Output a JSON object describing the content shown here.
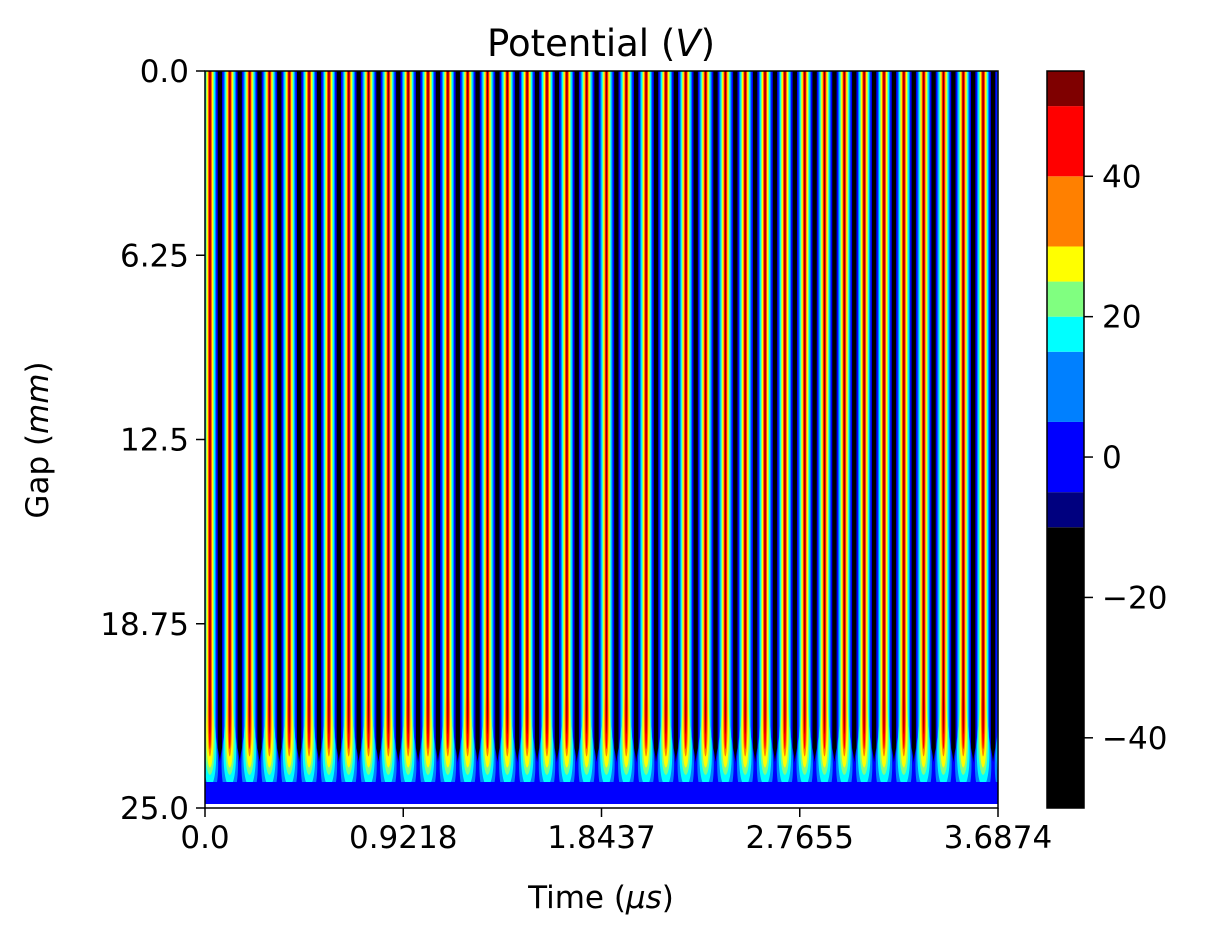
{
  "chart_data": {
    "type": "heatmap",
    "plot_kind": "filled-contour",
    "title": {
      "prefix": "Potential (",
      "symbol": "V",
      "suffix": ")"
    },
    "xlabel": {
      "prefix": "Time (",
      "symbol": "μs",
      "suffix": ")"
    },
    "ylabel": {
      "prefix": "Gap (",
      "symbol": "mm",
      "suffix": ")"
    },
    "x_ticks": [
      "0.0",
      "0.9218",
      "1.8437",
      "2.7655",
      "3.6874"
    ],
    "x_tick_values": [
      0.0,
      0.9218,
      1.8437,
      2.7655,
      3.6874
    ],
    "xlim": [
      0.0,
      3.6874
    ],
    "y_ticks": [
      "0.0",
      "6.25",
      "12.5",
      "18.75",
      "25.0"
    ],
    "y_tick_values": [
      0.0,
      6.25,
      12.5,
      18.75,
      25.0
    ],
    "ylim": [
      25.0,
      0.0
    ],
    "y_inverted": true,
    "oscillation_cycles": 40,
    "colormap": "jet",
    "colorbar": {
      "ticks": [
        "40",
        "20",
        "0",
        "−20",
        "−40"
      ],
      "tick_values": [
        40,
        20,
        0,
        -20,
        -40
      ],
      "range": [
        -50,
        55
      ],
      "levels": [
        {
          "from": -50,
          "to": -10,
          "color": "#000000"
        },
        {
          "from": -10,
          "to": -5,
          "color": "#00007f"
        },
        {
          "from": -5,
          "to": 5,
          "color": "#0000ff"
        },
        {
          "from": 5,
          "to": 15,
          "color": "#0080ff"
        },
        {
          "from": 15,
          "to": 20,
          "color": "#00ffff"
        },
        {
          "from": 20,
          "to": 25,
          "color": "#80ff80"
        },
        {
          "from": 25,
          "to": 30,
          "color": "#ffff00"
        },
        {
          "from": 30,
          "to": 40,
          "color": "#ff8000"
        },
        {
          "from": 40,
          "to": 50,
          "color": "#ff0000"
        },
        {
          "from": 50,
          "to": 55,
          "color": "#7f0000"
        }
      ]
    }
  }
}
